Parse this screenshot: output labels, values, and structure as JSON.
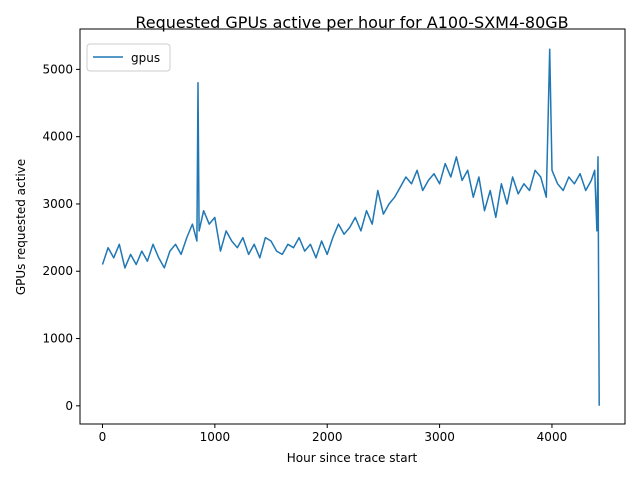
{
  "chart_data": {
    "type": "line",
    "title": "Requested GPUs active per hour for A100-SXM4-80GB",
    "xlabel": "Hour since trace start",
    "ylabel": "GPUs requested active",
    "xlim": [
      -200,
      4650
    ],
    "ylim": [
      -270,
      5600
    ],
    "xticks": [
      0,
      1000,
      2000,
      3000,
      4000
    ],
    "yticks": [
      0,
      1000,
      2000,
      3000,
      4000,
      5000
    ],
    "grid": false,
    "legend_position": "top-left",
    "series": [
      {
        "name": "gpus",
        "color": "#1f77b4",
        "x": [
          0,
          50,
          100,
          150,
          200,
          250,
          300,
          350,
          400,
          450,
          500,
          550,
          600,
          650,
          700,
          750,
          800,
          840,
          850,
          860,
          900,
          950,
          1000,
          1050,
          1100,
          1150,
          1200,
          1250,
          1300,
          1350,
          1400,
          1450,
          1500,
          1550,
          1600,
          1650,
          1700,
          1750,
          1800,
          1850,
          1900,
          1950,
          2000,
          2050,
          2100,
          2150,
          2200,
          2250,
          2300,
          2350,
          2400,
          2450,
          2500,
          2550,
          2600,
          2650,
          2700,
          2750,
          2800,
          2850,
          2900,
          2950,
          3000,
          3050,
          3100,
          3150,
          3200,
          3250,
          3300,
          3350,
          3400,
          3450,
          3500,
          3550,
          3600,
          3650,
          3700,
          3750,
          3800,
          3850,
          3900,
          3950,
          3980,
          4000,
          4050,
          4100,
          4150,
          4200,
          4250,
          4300,
          4350,
          4380,
          4400,
          4410,
          4420
        ],
        "values": [
          2100,
          2350,
          2200,
          2400,
          2050,
          2250,
          2100,
          2300,
          2150,
          2400,
          2200,
          2050,
          2300,
          2400,
          2250,
          2500,
          2700,
          2450,
          4800,
          2600,
          2900,
          2700,
          2800,
          2300,
          2600,
          2450,
          2350,
          2500,
          2250,
          2400,
          2200,
          2500,
          2450,
          2300,
          2250,
          2400,
          2350,
          2500,
          2300,
          2400,
          2200,
          2450,
          2250,
          2500,
          2700,
          2550,
          2650,
          2800,
          2600,
          2900,
          2700,
          3200,
          2850,
          3000,
          3100,
          3250,
          3400,
          3300,
          3500,
          3200,
          3350,
          3450,
          3300,
          3600,
          3400,
          3700,
          3350,
          3500,
          3100,
          3400,
          2900,
          3200,
          2800,
          3300,
          3000,
          3400,
          3150,
          3300,
          3200,
          3500,
          3400,
          3100,
          5300,
          3500,
          3300,
          3200,
          3400,
          3300,
          3450,
          3200,
          3350,
          3500,
          2600,
          3700,
          0
        ]
      }
    ]
  }
}
